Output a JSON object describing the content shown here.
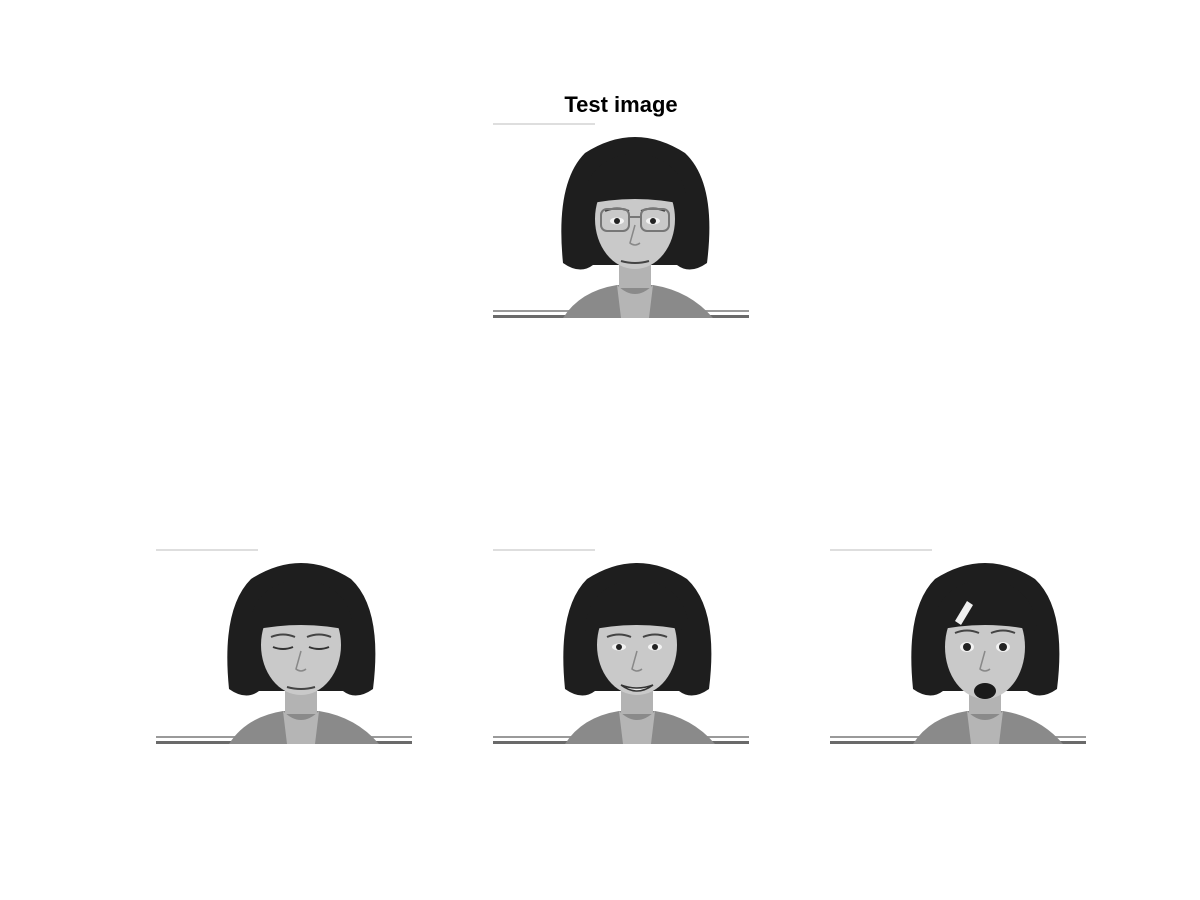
{
  "figure": {
    "title": "Test image"
  },
  "faces": {
    "test": {
      "expression": "neutral",
      "glasses": true
    },
    "bottom": [
      {
        "expression": "eyes-closed",
        "glasses": false
      },
      {
        "expression": "smiling",
        "glasses": false
      },
      {
        "expression": "surprised",
        "glasses": false
      }
    ]
  },
  "colors": {
    "background": "#ffffff",
    "hair": "#1e1e1e",
    "skin": "#c9c9c9",
    "sweater": "#8a8a8a"
  }
}
